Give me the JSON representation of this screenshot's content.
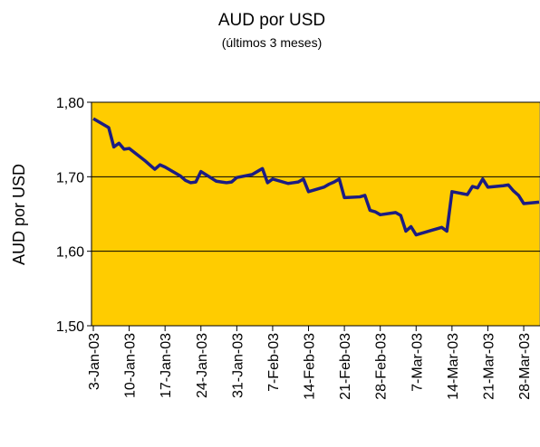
{
  "chart_data": {
    "type": "line",
    "title": "AUD por USD",
    "subtitle": "(últimos 3 meses)",
    "y_label": "AUD por USD",
    "x": [
      "2003-01-03",
      "2003-01-06",
      "2003-01-07",
      "2003-01-08",
      "2003-01-09",
      "2003-01-10",
      "2003-01-13",
      "2003-01-14",
      "2003-01-15",
      "2003-01-16",
      "2003-01-17",
      "2003-01-20",
      "2003-01-21",
      "2003-01-22",
      "2003-01-23",
      "2003-01-24",
      "2003-01-27",
      "2003-01-28",
      "2003-01-29",
      "2003-01-30",
      "2003-01-31",
      "2003-02-03",
      "2003-02-04",
      "2003-02-05",
      "2003-02-06",
      "2003-02-07",
      "2003-02-10",
      "2003-02-11",
      "2003-02-12",
      "2003-02-13",
      "2003-02-14",
      "2003-02-17",
      "2003-02-18",
      "2003-02-19",
      "2003-02-20",
      "2003-02-21",
      "2003-02-24",
      "2003-02-25",
      "2003-02-26",
      "2003-02-27",
      "2003-02-28",
      "2003-03-03",
      "2003-03-04",
      "2003-03-05",
      "2003-03-06",
      "2003-03-07",
      "2003-03-10",
      "2003-03-11",
      "2003-03-12",
      "2003-03-13",
      "2003-03-14",
      "2003-03-17",
      "2003-03-18",
      "2003-03-19",
      "2003-03-20",
      "2003-03-21",
      "2003-03-24",
      "2003-03-25",
      "2003-03-26",
      "2003-03-27",
      "2003-03-28",
      "2003-03-31"
    ],
    "series": [
      {
        "name": "AUD por USD",
        "color": "#1c1c82",
        "values": [
          1.778,
          1.766,
          1.74,
          1.745,
          1.737,
          1.738,
          1.722,
          1.716,
          1.71,
          1.716,
          1.713,
          1.701,
          1.695,
          1.692,
          1.693,
          1.707,
          1.694,
          1.693,
          1.692,
          1.693,
          1.699,
          1.703,
          1.707,
          1.711,
          1.692,
          1.697,
          1.691,
          1.692,
          1.693,
          1.697,
          1.68,
          1.686,
          1.69,
          1.693,
          1.697,
          1.672,
          1.673,
          1.675,
          1.655,
          1.653,
          1.649,
          1.652,
          1.648,
          1.627,
          1.633,
          1.622,
          1.628,
          1.63,
          1.632,
          1.627,
          1.68,
          1.676,
          1.687,
          1.685,
          1.697,
          1.686,
          1.688,
          1.689,
          1.681,
          1.675,
          1.664,
          1.666
        ]
      }
    ],
    "xlim": [
      "2003-01-03",
      "2003-03-31"
    ],
    "xticks": [
      {
        "value": "2003-01-03",
        "label": "3-Jan-03"
      },
      {
        "value": "2003-01-10",
        "label": "10-Jan-03"
      },
      {
        "value": "2003-01-17",
        "label": "17-Jan-03"
      },
      {
        "value": "2003-01-24",
        "label": "24-Jan-03"
      },
      {
        "value": "2003-01-31",
        "label": "31-Jan-03"
      },
      {
        "value": "2003-02-07",
        "label": "7-Feb-03"
      },
      {
        "value": "2003-02-14",
        "label": "14-Feb-03"
      },
      {
        "value": "2003-02-21",
        "label": "21-Feb-03"
      },
      {
        "value": "2003-02-28",
        "label": "28-Feb-03"
      },
      {
        "value": "2003-03-07",
        "label": "7-Mar-03"
      },
      {
        "value": "2003-03-14",
        "label": "14-Mar-03"
      },
      {
        "value": "2003-03-21",
        "label": "21-Mar-03"
      },
      {
        "value": "2003-03-28",
        "label": "28-Mar-03"
      }
    ],
    "ylim": [
      1.5,
      1.8
    ],
    "yticks": [
      {
        "value": 1.5,
        "label": "1,50"
      },
      {
        "value": 1.6,
        "label": "1,60"
      },
      {
        "value": 1.7,
        "label": "1,70"
      },
      {
        "value": 1.8,
        "label": "1,80"
      }
    ],
    "grid": true,
    "background": "#ffcc00"
  }
}
